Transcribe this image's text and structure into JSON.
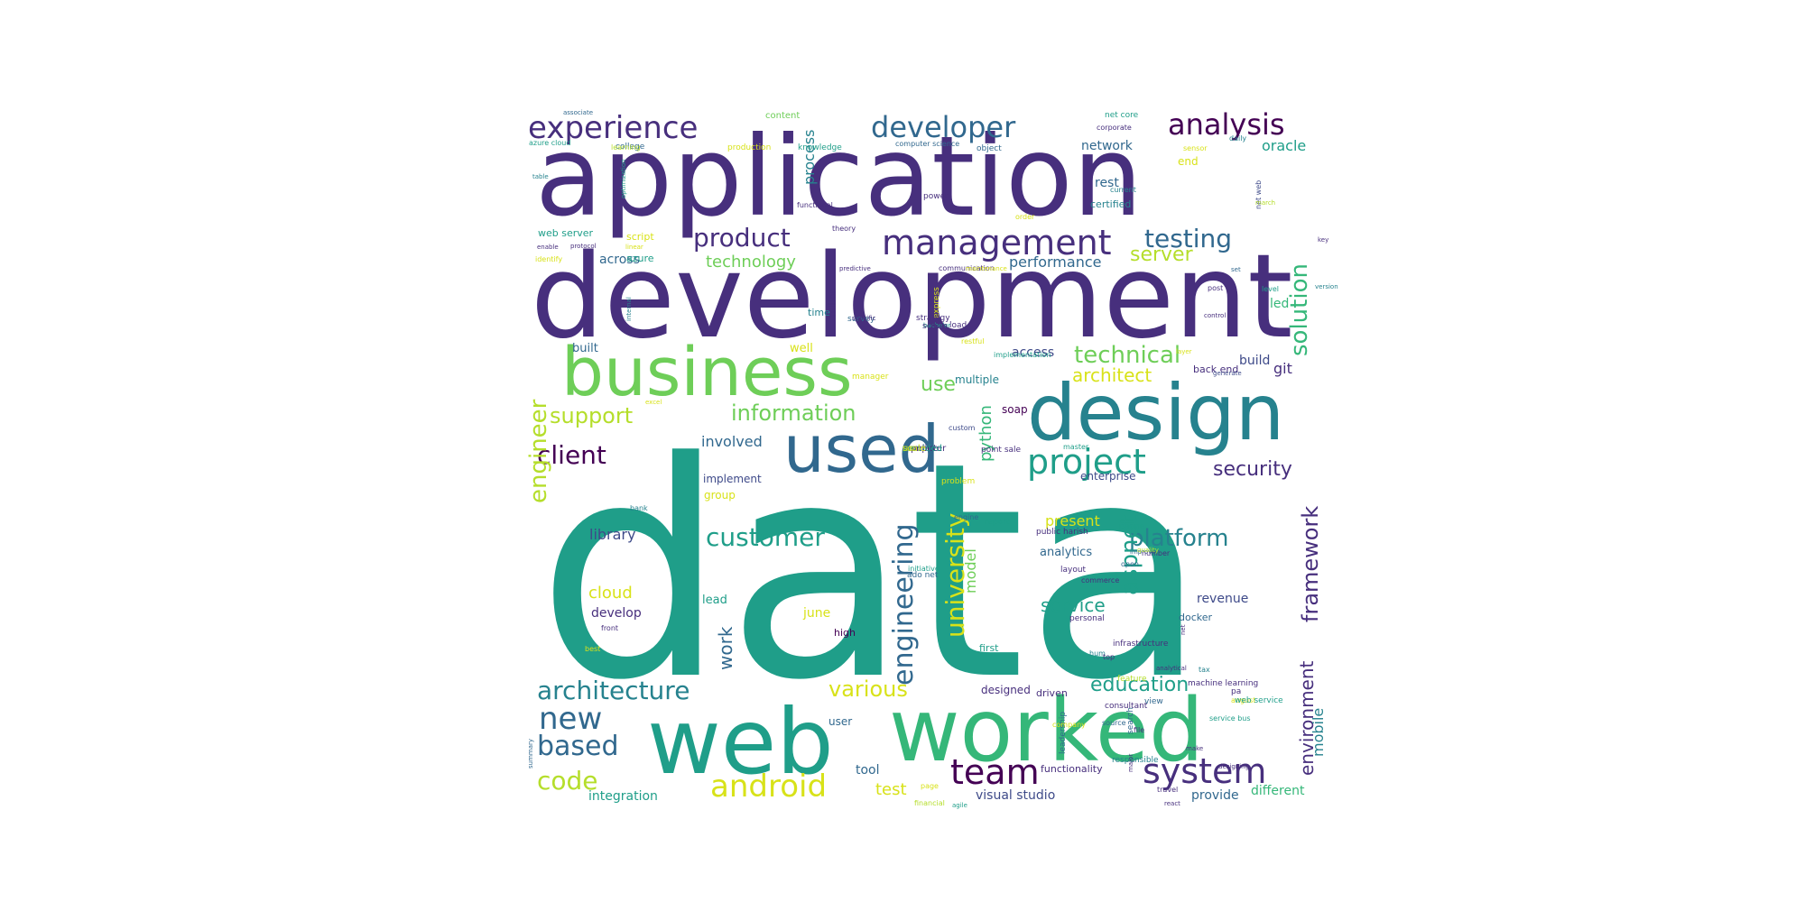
{
  "palette": {
    "d": "#472f7d",
    "v": "#440154",
    "b": "#3e4a89",
    "s": "#31688e",
    "t": "#26828e",
    "c": "#1f9e89",
    "m": "#35b779",
    "g": "#6ece58",
    "l": "#b5de2b",
    "y": "#d8e219"
  },
  "words": [
    {
      "text": "data",
      "color": "c",
      "rotate": false
    },
    {
      "text": "application",
      "color": "d",
      "rotate": false
    },
    {
      "text": "development",
      "color": "d",
      "rotate": false
    },
    {
      "text": "web",
      "color": "c",
      "rotate": false
    },
    {
      "text": "worked",
      "color": "m",
      "rotate": false
    },
    {
      "text": "design",
      "color": "t",
      "rotate": false
    },
    {
      "text": "business",
      "color": "g",
      "rotate": false
    },
    {
      "text": "used",
      "color": "s",
      "rotate": false
    },
    {
      "text": "management",
      "color": "d",
      "rotate": false
    },
    {
      "text": "developer",
      "color": "s",
      "rotate": false
    },
    {
      "text": "experience",
      "color": "d",
      "rotate": false
    },
    {
      "text": "analysis",
      "color": "v",
      "rotate": false
    },
    {
      "text": "project",
      "color": "c",
      "rotate": false
    },
    {
      "text": "system",
      "color": "d",
      "rotate": false
    },
    {
      "text": "team",
      "color": "v",
      "rotate": false
    },
    {
      "text": "android",
      "color": "y",
      "rotate": false
    },
    {
      "text": "architecture",
      "color": "t",
      "rotate": false
    },
    {
      "text": "customer",
      "color": "c",
      "rotate": false
    },
    {
      "text": "platform",
      "color": "t",
      "rotate": false
    },
    {
      "text": "testing",
      "color": "s",
      "rotate": false
    },
    {
      "text": "product",
      "color": "d",
      "rotate": false
    },
    {
      "text": "technical",
      "color": "g",
      "rotate": false
    },
    {
      "text": "new",
      "color": "s",
      "rotate": false
    },
    {
      "text": "based",
      "color": "s",
      "rotate": false
    },
    {
      "text": "code",
      "color": "l",
      "rotate": false
    },
    {
      "text": "client",
      "color": "v",
      "rotate": false
    },
    {
      "text": "information",
      "color": "g",
      "rotate": false
    },
    {
      "text": "support",
      "color": "l",
      "rotate": false
    },
    {
      "text": "security",
      "color": "d",
      "rotate": false
    },
    {
      "text": "education",
      "color": "c",
      "rotate": false
    },
    {
      "text": "aspnet",
      "color": "c",
      "rotate": true
    },
    {
      "text": "engineering",
      "color": "s",
      "rotate": true
    },
    {
      "text": "university",
      "color": "y",
      "rotate": true
    },
    {
      "text": "engineer",
      "color": "l",
      "rotate": true
    },
    {
      "text": "solution",
      "color": "m",
      "rotate": true
    },
    {
      "text": "framework",
      "color": "d",
      "rotate": true
    },
    {
      "text": "environment",
      "color": "d",
      "rotate": true
    },
    {
      "text": "server",
      "color": "l",
      "rotate": false
    },
    {
      "text": "architect",
      "color": "y",
      "rotate": false
    },
    {
      "text": "service",
      "color": "c",
      "rotate": false
    },
    {
      "text": "various",
      "color": "y",
      "rotate": false
    },
    {
      "text": "technology",
      "color": "g",
      "rotate": false
    },
    {
      "text": "performance",
      "color": "s",
      "rotate": false
    },
    {
      "text": "use",
      "color": "g",
      "rotate": false
    },
    {
      "text": "work",
      "color": "s",
      "rotate": true
    },
    {
      "text": "mobile",
      "color": "t",
      "rotate": true
    },
    {
      "text": "python",
      "color": "m",
      "rotate": true
    },
    {
      "text": "process",
      "color": "t",
      "rotate": true
    },
    {
      "text": "model",
      "color": "g",
      "rotate": true
    },
    {
      "text": "test",
      "color": "y",
      "rotate": false
    },
    {
      "text": "cloud",
      "color": "y",
      "rotate": false
    },
    {
      "text": "oracle",
      "color": "c",
      "rotate": false
    },
    {
      "text": "rest",
      "color": "s",
      "rotate": false
    },
    {
      "text": "network",
      "color": "s",
      "rotate": false
    },
    {
      "text": "present",
      "color": "y",
      "rotate": false
    },
    {
      "text": "involved",
      "color": "s",
      "rotate": false
    },
    {
      "text": "library",
      "color": "b",
      "rotate": false
    },
    {
      "text": "git",
      "color": "d",
      "rotate": false
    },
    {
      "text": "build",
      "color": "b",
      "rotate": false
    },
    {
      "text": "led",
      "color": "m",
      "rotate": false
    },
    {
      "text": "access",
      "color": "b",
      "rotate": false
    },
    {
      "text": "across",
      "color": "s",
      "rotate": false
    },
    {
      "text": "visual studio",
      "color": "b",
      "rotate": false
    },
    {
      "text": "tool",
      "color": "s",
      "rotate": false
    },
    {
      "text": "provide",
      "color": "s",
      "rotate": false
    },
    {
      "text": "different",
      "color": "m",
      "rotate": false
    },
    {
      "text": "integration",
      "color": "c",
      "rotate": false
    },
    {
      "text": "develop",
      "color": "d",
      "rotate": false
    },
    {
      "text": "revenue",
      "color": "b",
      "rotate": false
    },
    {
      "text": "analytics",
      "color": "s",
      "rotate": false
    },
    {
      "text": "june",
      "color": "y",
      "rotate": false
    },
    {
      "text": "implement",
      "color": "b",
      "rotate": false
    },
    {
      "text": "group",
      "color": "y",
      "rotate": false
    },
    {
      "text": "designed",
      "color": "d",
      "rotate": false
    },
    {
      "text": "enterprise",
      "color": "b",
      "rotate": false
    },
    {
      "text": "built",
      "color": "s",
      "rotate": false
    },
    {
      "text": "well",
      "color": "y",
      "rotate": false
    },
    {
      "text": "lead",
      "color": "c",
      "rotate": false
    },
    {
      "text": "user",
      "color": "s",
      "rotate": false
    },
    {
      "text": "functionality",
      "color": "d",
      "rotate": false
    },
    {
      "text": "multiple",
      "color": "t",
      "rotate": false
    },
    {
      "text": "soap",
      "color": "v",
      "rotate": false
    },
    {
      "text": "certified",
      "color": "t",
      "rotate": false
    },
    {
      "text": "docker",
      "color": "s",
      "rotate": false
    },
    {
      "text": "high",
      "color": "v",
      "rotate": false
    },
    {
      "text": "driven",
      "color": "d",
      "rotate": false
    },
    {
      "text": "first",
      "color": "c",
      "rotate": false
    },
    {
      "text": "end",
      "color": "y",
      "rotate": false
    },
    {
      "text": "back end",
      "color": "d",
      "rotate": false
    },
    {
      "text": "script",
      "color": "y",
      "rotate": false
    },
    {
      "text": "azure",
      "color": "c",
      "rotate": false
    },
    {
      "text": "web server",
      "color": "c",
      "rotate": false
    },
    {
      "text": "million",
      "color": "d",
      "rotate": true
    },
    {
      "text": "time",
      "color": "t",
      "rotate": false
    },
    {
      "text": "content",
      "color": "g",
      "rotate": false
    },
    {
      "text": "college",
      "color": "s",
      "rotate": false
    },
    {
      "text": "knowledge",
      "color": "c",
      "rotate": false
    },
    {
      "text": "production",
      "color": "y",
      "rotate": false
    },
    {
      "text": "computer science",
      "color": "s",
      "rotate": false
    },
    {
      "text": "object",
      "color": "s",
      "rotate": false
    },
    {
      "text": "net core",
      "color": "c",
      "rotate": false
    },
    {
      "text": "corporate",
      "color": "d",
      "rotate": false
    },
    {
      "text": "sensor",
      "color": "y",
      "rotate": false
    },
    {
      "text": "daily",
      "color": "t",
      "rotate": false
    },
    {
      "text": "associate",
      "color": "s",
      "rotate": false
    },
    {
      "text": "azure cloud",
      "color": "c",
      "rotate": false
    },
    {
      "text": "learning",
      "color": "l",
      "rotate": false
    },
    {
      "text": "table",
      "color": "t",
      "rotate": false
    },
    {
      "text": "functional",
      "color": "d",
      "rotate": false
    },
    {
      "text": "theory",
      "color": "d",
      "rotate": false
    },
    {
      "text": "power",
      "color": "d",
      "rotate": false
    },
    {
      "text": "order",
      "color": "y",
      "rotate": false
    },
    {
      "text": "current",
      "color": "t",
      "rotate": false
    },
    {
      "text": "net web",
      "color": "b",
      "rotate": true
    },
    {
      "text": "key",
      "color": "d",
      "rotate": false
    },
    {
      "text": "march",
      "color": "l",
      "rotate": false
    },
    {
      "text": "optimization",
      "color": "c",
      "rotate": true
    },
    {
      "text": "enable",
      "color": "d",
      "rotate": false
    },
    {
      "text": "protocol",
      "color": "d",
      "rotate": false
    },
    {
      "text": "linear",
      "color": "y",
      "rotate": false
    },
    {
      "text": "identify",
      "color": "y",
      "rotate": false
    },
    {
      "text": "predictive",
      "color": "d",
      "rotate": false
    },
    {
      "text": "communication",
      "color": "d",
      "rotate": false
    },
    {
      "text": "maintenance",
      "color": "y",
      "rotate": false
    },
    {
      "text": "set",
      "color": "s",
      "rotate": false
    },
    {
      "text": "version",
      "color": "t",
      "rotate": false
    },
    {
      "text": "level",
      "color": "c",
      "rotate": false
    },
    {
      "text": "post",
      "color": "d",
      "rotate": false
    },
    {
      "text": "control",
      "color": "d",
      "rotate": false
    },
    {
      "text": "internal",
      "color": "t",
      "rotate": true
    },
    {
      "text": "survey",
      "color": "s",
      "rotate": false
    },
    {
      "text": "layer",
      "color": "y",
      "rotate": false
    },
    {
      "text": "specific",
      "color": "d",
      "rotate": false
    },
    {
      "text": "load",
      "color": "d",
      "rotate": false
    },
    {
      "text": "restful",
      "color": "y",
      "rotate": false
    },
    {
      "text": "express",
      "color": "y",
      "rotate": true
    },
    {
      "text": "bachelor",
      "color": "c",
      "rotate": false
    },
    {
      "text": "implementation",
      "color": "c",
      "rotate": false
    },
    {
      "text": "generate",
      "color": "b",
      "rotate": false
    },
    {
      "text": "manager",
      "color": "y",
      "rotate": false
    },
    {
      "text": "strategy",
      "color": "d",
      "rotate": false
    },
    {
      "text": "scrum",
      "color": "d",
      "rotate": false
    },
    {
      "text": "excel",
      "color": "y",
      "rotate": false
    },
    {
      "text": "master",
      "color": "c",
      "rotate": false
    },
    {
      "text": "custom",
      "color": "b",
      "rotate": false
    },
    {
      "text": "point sale",
      "color": "d",
      "rotate": false
    },
    {
      "text": "engine",
      "color": "s",
      "rotate": false
    },
    {
      "text": "ado net",
      "color": "s",
      "rotate": false
    },
    {
      "text": "initiative",
      "color": "c",
      "rotate": false
    },
    {
      "text": "problem",
      "color": "y",
      "rotate": false
    },
    {
      "text": "report",
      "color": "c",
      "rotate": false
    },
    {
      "text": "public harish",
      "color": "d",
      "rotate": false
    },
    {
      "text": "phone",
      "color": "c",
      "rotate": false
    },
    {
      "text": "layout",
      "color": "d",
      "rotate": false
    },
    {
      "text": "improve",
      "color": "s",
      "rotate": false
    },
    {
      "text": "open",
      "color": "s",
      "rotate": false
    },
    {
      "text": "commerce",
      "color": "d",
      "rotate": false
    },
    {
      "text": "personal",
      "color": "d",
      "rotate": false
    },
    {
      "text": "infrastructure",
      "color": "d",
      "rotate": false
    },
    {
      "text": "view",
      "color": "s",
      "rotate": false
    },
    {
      "text": "machine learning",
      "color": "d",
      "rotate": false
    },
    {
      "text": "consultant",
      "color": "d",
      "rotate": false
    },
    {
      "text": "august",
      "color": "y",
      "rotate": false
    },
    {
      "text": "tax",
      "color": "t",
      "rotate": false
    },
    {
      "text": "hum",
      "color": "t",
      "rotate": false
    },
    {
      "text": "analytical",
      "color": "d",
      "rotate": false
    },
    {
      "text": "net",
      "color": "d",
      "rotate": true
    },
    {
      "text": "pa",
      "color": "d",
      "rotate": false
    },
    {
      "text": "web service",
      "color": "c",
      "rotate": false
    },
    {
      "text": "feature",
      "color": "l",
      "rotate": false
    },
    {
      "text": "top",
      "color": "d",
      "rotate": false
    },
    {
      "text": "number",
      "color": "d",
      "rotate": false
    },
    {
      "text": "bank",
      "color": "t",
      "rotate": false
    },
    {
      "text": "front",
      "color": "d",
      "rotate": false
    },
    {
      "text": "best",
      "color": "y",
      "rotate": false
    },
    {
      "text": "search",
      "color": "s",
      "rotate": true
    },
    {
      "text": "file",
      "color": "d",
      "rotate": false
    },
    {
      "text": "service bus",
      "color": "c",
      "rotate": false
    },
    {
      "text": "source",
      "color": "s",
      "rotate": false
    },
    {
      "text": "responsible",
      "color": "t",
      "rotate": false
    },
    {
      "text": "leadership",
      "color": "s",
      "rotate": true
    },
    {
      "text": "company",
      "color": "y",
      "rotate": false
    },
    {
      "text": "make",
      "color": "d",
      "rotate": false
    },
    {
      "text": "summary",
      "color": "s",
      "rotate": true
    },
    {
      "text": "page",
      "color": "y",
      "rotate": false
    },
    {
      "text": "major",
      "color": "d",
      "rotate": true
    },
    {
      "text": "designing",
      "color": "d",
      "rotate": false
    },
    {
      "text": "quality",
      "color": "l",
      "rotate": false
    },
    {
      "text": "financial",
      "color": "l",
      "rotate": false
    },
    {
      "text": "agile",
      "color": "c",
      "rotate": false
    },
    {
      "text": "travel",
      "color": "d",
      "rotate": false
    },
    {
      "text": "react",
      "color": "d",
      "rotate": false
    },
    {
      "text": "computer",
      "color": "d",
      "rotate": false
    },
    {
      "text": "pipeline",
      "color": "d",
      "rotate": false
    },
    {
      "text": "provided",
      "color": "c",
      "rotate": false
    },
    {
      "text": "scale",
      "color": "y",
      "rotate": false
    },
    {
      "text": "ux",
      "color": "l",
      "rotate": false
    }
  ]
}
